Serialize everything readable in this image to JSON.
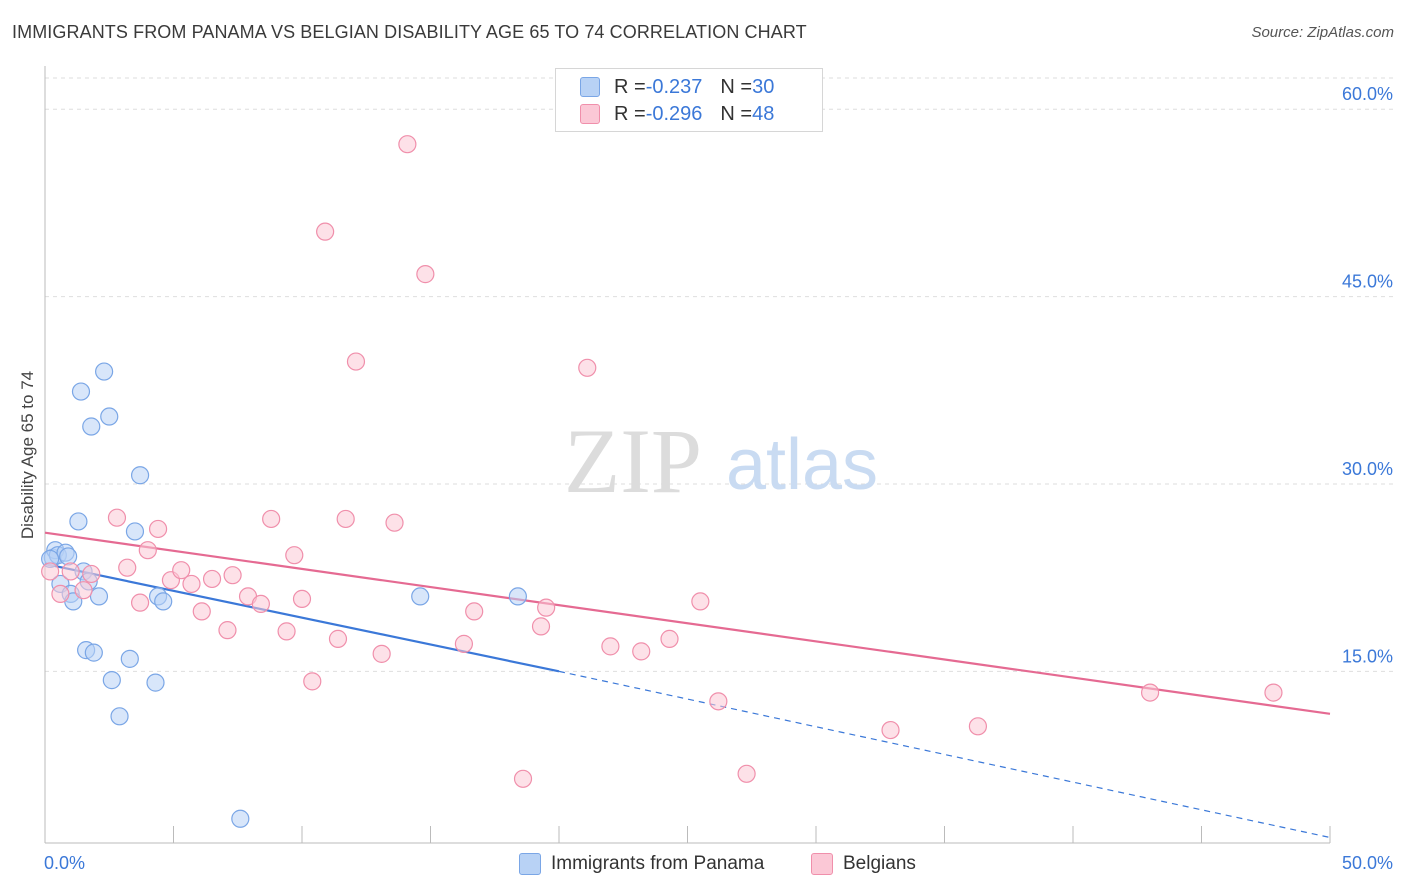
{
  "header": {
    "title": "IMMIGRANTS FROM PANAMA VS BELGIAN DISABILITY AGE 65 TO 74 CORRELATION CHART",
    "source": "Source: ZipAtlas.com"
  },
  "watermark": {
    "zip": "ZIP",
    "atlas": "atlas"
  },
  "legend": {
    "r_label": "R = ",
    "n_label": "N = ",
    "series": [
      {
        "name": "Immigrants from Panama",
        "r": "-0.237",
        "n": "30",
        "fill": "#b8d2f5",
        "stroke": "#7aa6e6"
      },
      {
        "name": "Belgians",
        "r": "-0.296",
        "n": "48",
        "fill": "#fbc8d6",
        "stroke": "#f08fab"
      }
    ]
  },
  "chart_data": {
    "type": "scatter",
    "title": "IMMIGRANTS FROM PANAMA VS BELGIAN DISABILITY AGE 65 TO 74 CORRELATION CHART",
    "xlabel": "",
    "ylabel": "Disability Age 65 to 74",
    "xlim": [
      0,
      50
    ],
    "ylim": [
      1.5,
      62.5
    ],
    "x_tick_labels": [
      "0.0%",
      "50.0%"
    ],
    "y_ticks": [
      15,
      30,
      45,
      60
    ],
    "y_tick_labels": [
      "15.0%",
      "30.0%",
      "45.0%",
      "60.0%"
    ],
    "grid": true,
    "series": [
      {
        "name": "Immigrants from Panama",
        "color": "#7aa6e6",
        "trend_color": "#3b78d8",
        "points": [
          [
            0.3,
            24.1
          ],
          [
            0.4,
            24.7
          ],
          [
            0.5,
            24.3
          ],
          [
            0.6,
            22.0
          ],
          [
            0.8,
            24.5
          ],
          [
            0.9,
            24.2
          ],
          [
            1.0,
            21.2
          ],
          [
            1.1,
            20.6
          ],
          [
            1.3,
            27.0
          ],
          [
            1.4,
            37.4
          ],
          [
            1.5,
            23.0
          ],
          [
            1.6,
            16.7
          ],
          [
            1.7,
            22.2
          ],
          [
            1.8,
            34.6
          ],
          [
            1.9,
            16.5
          ],
          [
            2.1,
            21.0
          ],
          [
            2.3,
            39.0
          ],
          [
            2.5,
            35.4
          ],
          [
            2.6,
            14.3
          ],
          [
            2.9,
            11.4
          ],
          [
            3.3,
            16.0
          ],
          [
            3.5,
            26.2
          ],
          [
            3.7,
            30.7
          ],
          [
            4.3,
            14.1
          ],
          [
            4.4,
            21.0
          ],
          [
            4.6,
            20.6
          ],
          [
            7.6,
            3.2
          ],
          [
            14.6,
            21.0
          ],
          [
            18.4,
            21.0
          ],
          [
            0.2,
            24.0
          ]
        ],
        "trend": {
          "x0": 0,
          "y0": 23.6,
          "x1": 20,
          "y1": 15.0,
          "dash_to_x": 50,
          "dash_to_y": 1.7
        }
      },
      {
        "name": "Belgians",
        "color": "#f08fab",
        "trend_color": "#e56a92",
        "points": [
          [
            0.2,
            23.0
          ],
          [
            0.6,
            21.2
          ],
          [
            1.0,
            23.0
          ],
          [
            1.5,
            21.5
          ],
          [
            1.8,
            22.8
          ],
          [
            2.8,
            27.3
          ],
          [
            3.2,
            23.3
          ],
          [
            3.7,
            20.5
          ],
          [
            4.0,
            24.7
          ],
          [
            4.4,
            26.4
          ],
          [
            4.9,
            22.3
          ],
          [
            5.3,
            23.1
          ],
          [
            5.7,
            22.0
          ],
          [
            6.1,
            19.8
          ],
          [
            6.5,
            22.4
          ],
          [
            7.1,
            18.3
          ],
          [
            7.3,
            22.7
          ],
          [
            7.9,
            21.0
          ],
          [
            8.4,
            20.4
          ],
          [
            8.8,
            27.2
          ],
          [
            9.4,
            18.2
          ],
          [
            9.7,
            24.3
          ],
          [
            10.0,
            20.8
          ],
          [
            10.4,
            14.2
          ],
          [
            10.9,
            50.2
          ],
          [
            11.4,
            17.6
          ],
          [
            11.7,
            27.2
          ],
          [
            12.1,
            39.8
          ],
          [
            13.1,
            16.4
          ],
          [
            13.6,
            26.9
          ],
          [
            14.1,
            57.2
          ],
          [
            14.8,
            46.8
          ],
          [
            16.3,
            17.2
          ],
          [
            16.7,
            19.8
          ],
          [
            18.6,
            6.4
          ],
          [
            19.3,
            18.6
          ],
          [
            19.5,
            20.1
          ],
          [
            21.1,
            39.3
          ],
          [
            22.0,
            17.0
          ],
          [
            23.2,
            16.6
          ],
          [
            24.3,
            17.6
          ],
          [
            25.5,
            20.6
          ],
          [
            26.2,
            12.6
          ],
          [
            27.3,
            6.8
          ],
          [
            32.9,
            10.3
          ],
          [
            36.3,
            10.6
          ],
          [
            43.0,
            13.3
          ],
          [
            47.8,
            13.3
          ]
        ],
        "trend": {
          "x0": 0,
          "y0": 26.1,
          "x1": 50,
          "y1": 11.6
        }
      }
    ]
  }
}
